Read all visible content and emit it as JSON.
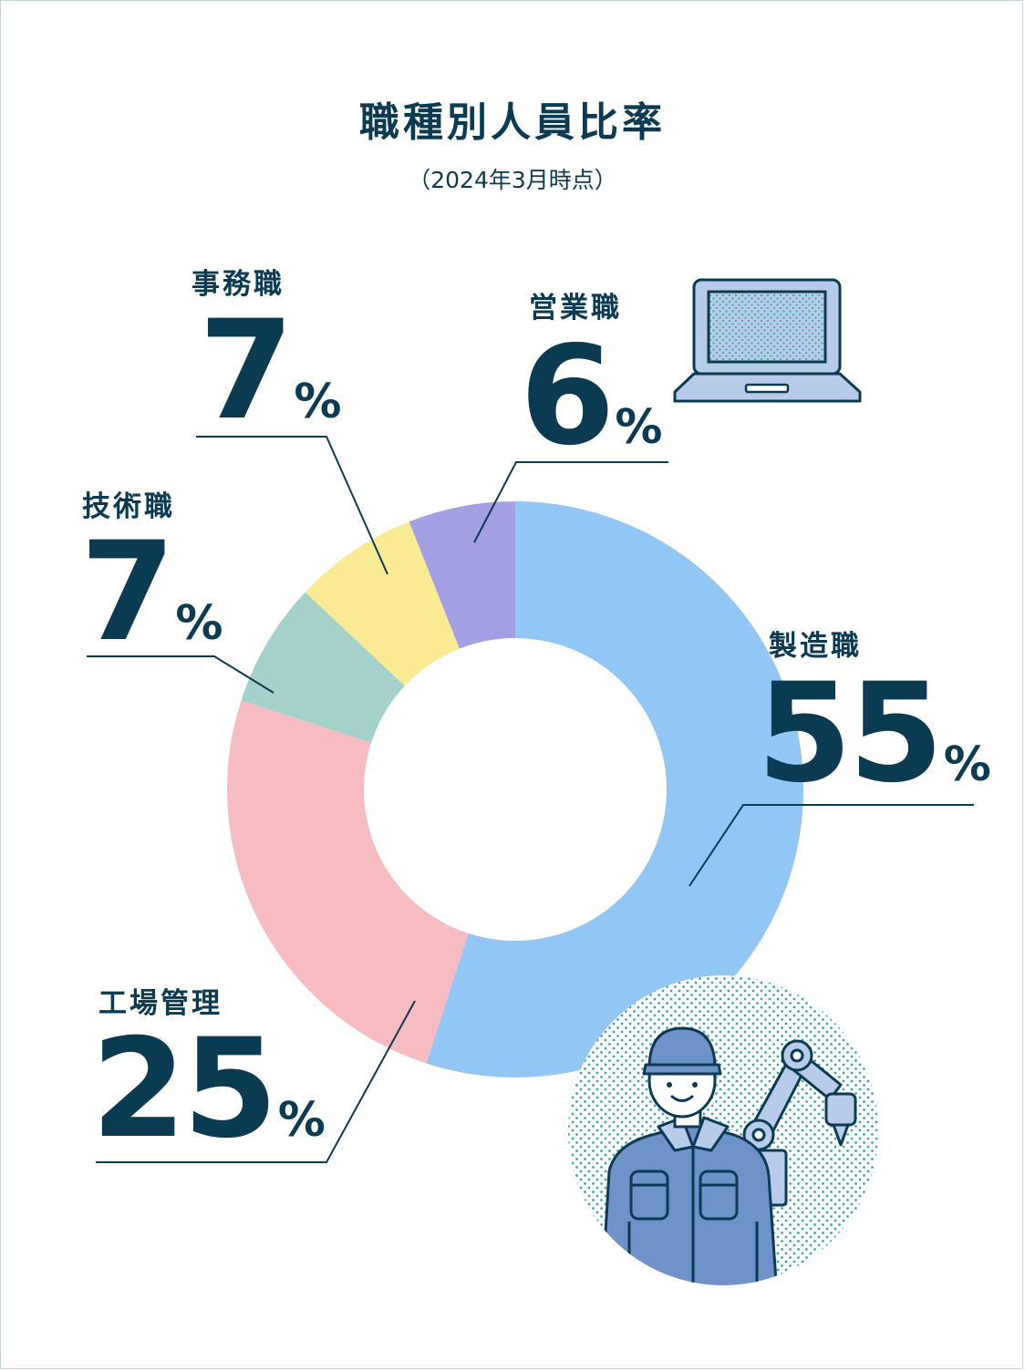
{
  "chart_data": {
    "type": "donut",
    "title": "職種別人員比率",
    "subtitle": "（2024年3月時点）",
    "unit": "%",
    "legend": "none",
    "grid": false,
    "slices": [
      {
        "label": "製造職",
        "value": 55,
        "display": "55",
        "color": "#92c6f4"
      },
      {
        "label": "工場管理",
        "value": 25,
        "display": "25",
        "color": "#f7bcc1"
      },
      {
        "label": "技術職",
        "value": 7,
        "display": "7",
        "color": "#a5d1cb"
      },
      {
        "label": "事務職",
        "value": 7,
        "display": "7",
        "color": "#faea93"
      },
      {
        "label": "営業職",
        "value": 6,
        "display": "6",
        "color": "#a2a0e2"
      }
    ]
  },
  "colors": {
    "text": "#0b3a53",
    "leader_line": "#0b3a53",
    "dot_pattern": "#3aa6a8",
    "illustration_blue": "#6d93c9",
    "illustration_light": "#b7ccea"
  },
  "icons": [
    "laptop-icon",
    "factory-worker-illustration",
    "robot-arm-icon"
  ]
}
